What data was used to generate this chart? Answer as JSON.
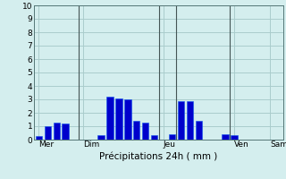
{
  "xlabel": "Précipitations 24h ( mm )",
  "ylim": [
    0,
    10
  ],
  "background_color": "#d4eeee",
  "grid_color": "#aacccc",
  "bar_color": "#0000cc",
  "bar_color2": "#1155ee",
  "num_bars": 28,
  "bar_values": [
    0.3,
    1.0,
    1.3,
    1.2,
    0.0,
    0.0,
    0.0,
    0.35,
    3.2,
    3.1,
    3.0,
    1.4,
    1.3,
    0.35,
    0.0,
    0.4,
    2.9,
    2.85,
    1.4,
    0.0,
    0.0,
    0.4,
    0.35,
    0.0,
    0.0,
    0.0,
    0.0,
    0.0
  ],
  "tick_values": [
    0,
    1,
    2,
    3,
    4,
    5,
    6,
    7,
    8,
    9,
    10
  ],
  "vline_positions": [
    4.5,
    13.5,
    15.5,
    21.5
  ],
  "day_labels": [
    "Mer",
    "Dim",
    "Jeu",
    "Ven",
    "Sam"
  ],
  "day_tick_positions": [
    0,
    5,
    14,
    22,
    26
  ],
  "vline_color": "#445555",
  "spine_color": "#557777"
}
